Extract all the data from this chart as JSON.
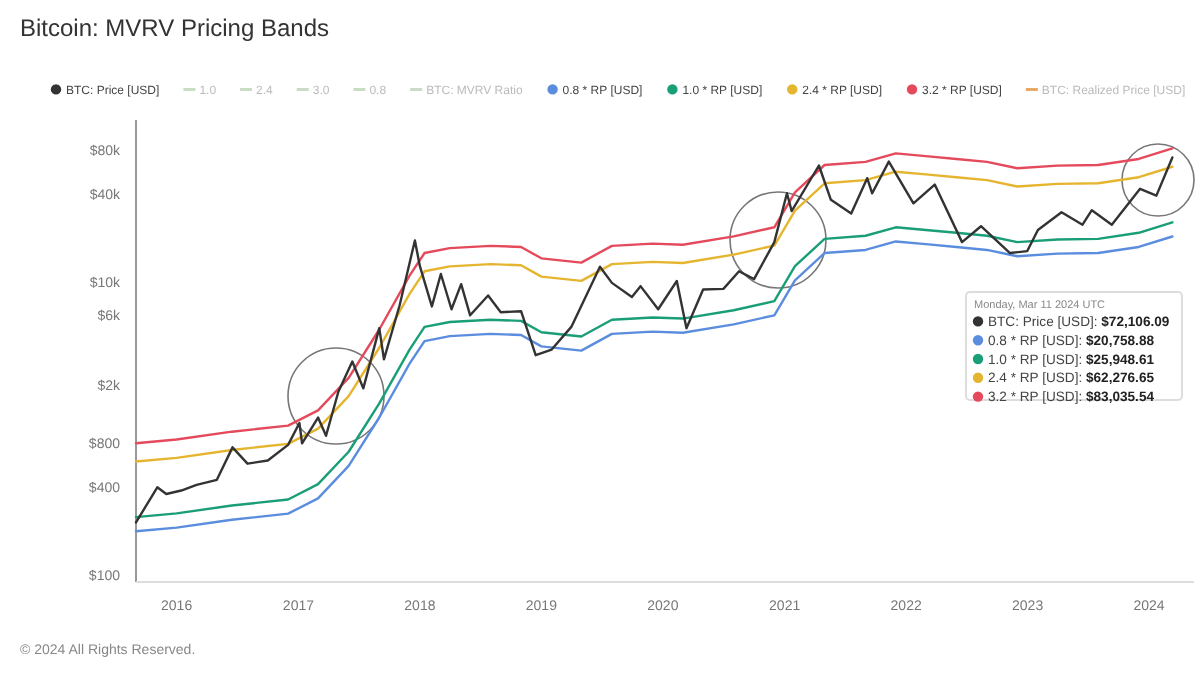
{
  "chart_data": {
    "type": "line",
    "title": "Bitcoin: MVRV Pricing Bands",
    "log": "y",
    "legend": "top",
    "grid": false,
    "marker": "none",
    "line_style": "solid",
    "xlim": [
      "2015-09-01",
      "2024-05-15"
    ],
    "xticks": [
      "2016",
      "2017",
      "2018",
      "2019",
      "2020",
      "2021",
      "2022",
      "2023",
      "2024"
    ],
    "ylim": [
      90,
      130000
    ],
    "yticks": [
      {
        "value": 100,
        "label": "$100"
      },
      {
        "value": 400,
        "label": "$400"
      },
      {
        "value": 800,
        "label": "$800"
      },
      {
        "value": 2000,
        "label": "$2k"
      },
      {
        "value": 6000,
        "label": "$6k"
      },
      {
        "value": 10000,
        "label": "$10k"
      },
      {
        "value": 40000,
        "label": "$40k"
      },
      {
        "value": 80000,
        "label": "$80k"
      }
    ],
    "series": [
      {
        "name": "BTC: Price [USD]",
        "color": "#333333",
        "x": [
          "2015-09-01",
          "2015-11-04",
          "2015-12-01",
          "2016-01-15",
          "2016-03-01",
          "2016-05-01",
          "2016-06-17",
          "2016-08-01",
          "2016-10-01",
          "2016-12-01",
          "2017-01-04",
          "2017-01-12",
          "2017-03-01",
          "2017-03-25",
          "2017-05-01",
          "2017-06-12",
          "2017-07-15",
          "2017-09-01",
          "2017-09-15",
          "2017-11-01",
          "2017-12-17",
          "2018-01-01",
          "2018-02-06",
          "2018-03-05",
          "2018-04-06",
          "2018-05-05",
          "2018-06-01",
          "2018-07-25",
          "2018-09-01",
          "2018-11-01",
          "2018-12-15",
          "2019-02-01",
          "2019-04-01",
          "2019-06-26",
          "2019-08-01",
          "2019-09-30",
          "2019-10-26",
          "2019-12-18",
          "2020-02-12",
          "2020-03-12",
          "2020-05-01",
          "2020-07-01",
          "2020-08-17",
          "2020-10-01",
          "2020-12-01",
          "2021-01-08",
          "2021-01-22",
          "2021-04-14",
          "2021-05-20",
          "2021-07-20",
          "2021-09-06",
          "2021-09-21",
          "2021-11-10",
          "2022-01-23",
          "2022-03-28",
          "2022-06-18",
          "2022-08-14",
          "2022-11-09",
          "2022-12-31",
          "2023-02-01",
          "2023-04-13",
          "2023-06-15",
          "2023-07-13",
          "2023-09-11",
          "2023-12-05",
          "2024-01-23",
          "2024-03-11"
        ],
        "values": [
          230,
          400,
          360,
          380,
          415,
          450,
          750,
          580,
          610,
          780,
          1100,
          800,
          1200,
          900,
          1800,
          2900,
          1900,
          4900,
          3000,
          7000,
          19500,
          13000,
          6900,
          11500,
          6600,
          9800,
          6000,
          8200,
          6300,
          6400,
          3200,
          3500,
          5000,
          12900,
          10000,
          8000,
          9500,
          6600,
          10300,
          4900,
          9000,
          9100,
          12000,
          10600,
          19000,
          41000,
          31000,
          63500,
          37000,
          29800,
          52000,
          41000,
          67500,
          35000,
          47000,
          19000,
          24400,
          16000,
          16500,
          23000,
          30400,
          25000,
          31400,
          25000,
          44000,
          39500,
          72106.09
        ]
      },
      {
        "name": "1.0",
        "color": "#c9dcc4"
      },
      {
        "name": "2.4",
        "color": "#c9dcc4"
      },
      {
        "name": "3.0",
        "color": "#c9dcc4"
      },
      {
        "name": "0.8",
        "color": "#c9dcc4"
      },
      {
        "name": "BTC: MVRV Ratio",
        "color": "#c9dcc4"
      },
      {
        "name": "0.8 * RP [USD]",
        "color": "#5b8ddf",
        "x": [
          "2015-09-01",
          "2016-01-01",
          "2016-06-15",
          "2016-12-01",
          "2017-03-01",
          "2017-06-01",
          "2017-09-01",
          "2017-12-01",
          "2018-01-15",
          "2018-04-01",
          "2018-08-01",
          "2018-11-01",
          "2019-01-01",
          "2019-05-01",
          "2019-08-01",
          "2019-12-01",
          "2020-03-01",
          "2020-08-01",
          "2020-12-01",
          "2021-02-01",
          "2021-05-01",
          "2021-09-01",
          "2021-12-01",
          "2022-03-01",
          "2022-06-01",
          "2022-09-01",
          "2022-12-01",
          "2023-04-01",
          "2023-08-01",
          "2023-12-01",
          "2024-03-11"
        ],
        "values": [
          200,
          212,
          240,
          264,
          336,
          560,
          1200,
          2800,
          4000,
          4320,
          4480,
          4400,
          3680,
          3440,
          4480,
          4640,
          4560,
          5200,
          6000,
          10400,
          16000,
          16800,
          19200,
          18400,
          17600,
          16800,
          15200,
          15840,
          16000,
          17600,
          20758.88
        ]
      },
      {
        "name": "1.0 * RP [USD]",
        "color": "#1a9e78",
        "x": [
          "2015-09-01",
          "2016-01-01",
          "2016-06-15",
          "2016-12-01",
          "2017-03-01",
          "2017-06-01",
          "2017-09-01",
          "2017-12-01",
          "2018-01-15",
          "2018-04-01",
          "2018-08-01",
          "2018-11-01",
          "2019-01-01",
          "2019-05-01",
          "2019-08-01",
          "2019-12-01",
          "2020-03-01",
          "2020-08-01",
          "2020-12-01",
          "2021-02-01",
          "2021-05-01",
          "2021-09-01",
          "2021-12-01",
          "2022-03-01",
          "2022-06-01",
          "2022-09-01",
          "2022-12-01",
          "2023-04-01",
          "2023-08-01",
          "2023-12-01",
          "2024-03-11"
        ],
        "values": [
          250,
          265,
          300,
          330,
          420,
          700,
          1500,
          3500,
          5000,
          5400,
          5600,
          5500,
          4600,
          4300,
          5600,
          5800,
          5700,
          6500,
          7500,
          13000,
          20000,
          21000,
          24000,
          23000,
          22000,
          21000,
          19000,
          19800,
          20000,
          22000,
          25948.61
        ]
      },
      {
        "name": "2.4 * RP [USD]",
        "color": "#e6b530",
        "x": [
          "2015-09-01",
          "2016-01-01",
          "2016-06-15",
          "2016-12-01",
          "2017-03-01",
          "2017-06-01",
          "2017-09-01",
          "2017-12-01",
          "2018-01-15",
          "2018-04-01",
          "2018-08-01",
          "2018-11-01",
          "2019-01-01",
          "2019-05-01",
          "2019-08-01",
          "2019-12-01",
          "2020-03-01",
          "2020-08-01",
          "2020-12-01",
          "2021-02-01",
          "2021-05-01",
          "2021-09-01",
          "2021-12-01",
          "2022-03-01",
          "2022-06-01",
          "2022-09-01",
          "2022-12-01",
          "2023-04-01",
          "2023-08-01",
          "2023-12-01",
          "2024-03-11"
        ],
        "values": [
          600,
          636,
          720,
          792,
          1008,
          1680,
          3600,
          8400,
          12000,
          12960,
          13440,
          13200,
          11040,
          10320,
          13440,
          13920,
          13680,
          15600,
          18000,
          31200,
          48000,
          50400,
          57600,
          55200,
          52800,
          50400,
          45600,
          47520,
          48000,
          52800,
          62276.65
        ]
      },
      {
        "name": "3.2 * RP [USD]",
        "color": "#e54a5c",
        "x": [
          "2015-09-01",
          "2016-01-01",
          "2016-06-15",
          "2016-12-01",
          "2017-03-01",
          "2017-06-01",
          "2017-09-01",
          "2017-12-01",
          "2018-01-15",
          "2018-04-01",
          "2018-08-01",
          "2018-11-01",
          "2019-01-01",
          "2019-05-01",
          "2019-08-01",
          "2019-12-01",
          "2020-03-01",
          "2020-08-01",
          "2020-12-01",
          "2021-02-01",
          "2021-05-01",
          "2021-09-01",
          "2021-12-01",
          "2022-03-01",
          "2022-06-01",
          "2022-09-01",
          "2022-12-01",
          "2023-04-01",
          "2023-08-01",
          "2023-12-01",
          "2024-03-11"
        ],
        "values": [
          800,
          848,
          960,
          1056,
          1344,
          2240,
          4800,
          11200,
          16000,
          17280,
          17920,
          17600,
          14720,
          13760,
          17920,
          18560,
          18240,
          20800,
          24000,
          41600,
          64000,
          67200,
          76800,
          73600,
          70400,
          67200,
          60800,
          63360,
          64000,
          70400,
          83035.54
        ]
      },
      {
        "name": "BTC: Realized Price [USD]",
        "color": "#e8a868"
      }
    ],
    "annotations": [
      "Monday, Mar 11 2024 UTC",
      "BTC: Price [USD]: $72,106.09",
      "0.8 * RP [USD]: $20,758.88",
      "1.0 * RP [USD]: $25,948.61",
      "2.4 * RP [USD]: $62,276.65",
      "3.2 * RP [USD]: $83,035.54",
      "© 2024 All Rights Reserved."
    ]
  }
}
